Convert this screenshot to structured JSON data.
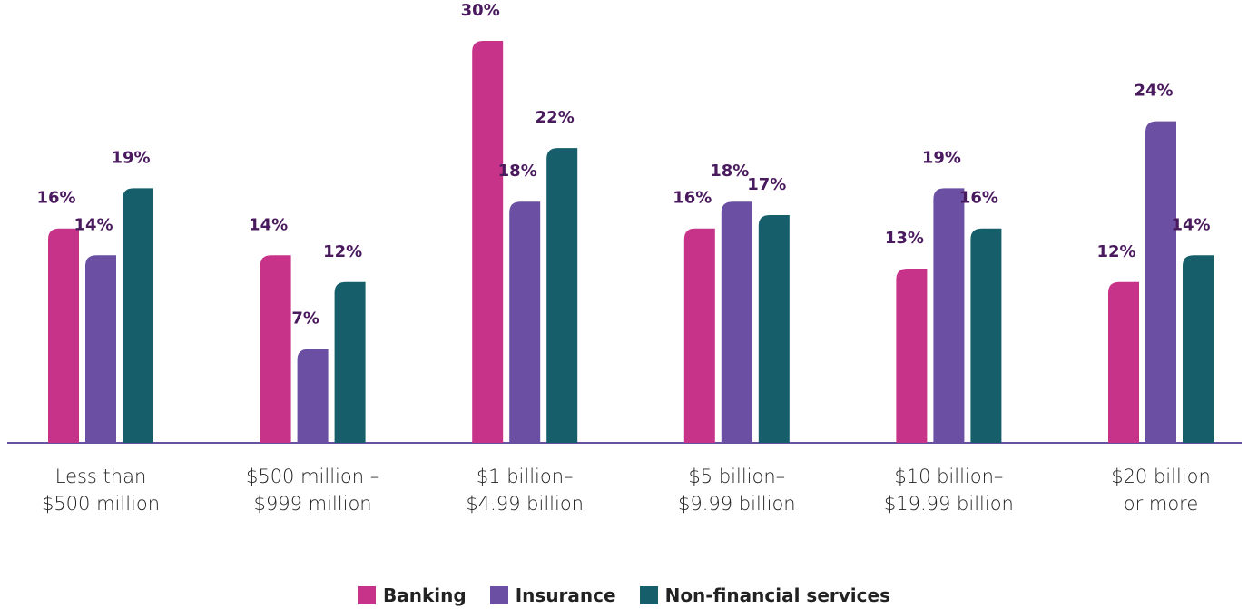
{
  "chart_data": {
    "type": "bar",
    "categories": [
      "Less than\n$500 million",
      "$500 million –\n$999 million",
      "$1 billion–\n$4.99 billion",
      "$5 billion–\n$9.99 billion",
      "$10 billion–\n$19.99 billion",
      "$20 billion\nor more"
    ],
    "series": [
      {
        "name": "Banking",
        "color": "#c8338a",
        "values": [
          16,
          14,
          30,
          16,
          13,
          12
        ],
        "value_labels": [
          "16%",
          "14%",
          "30%",
          "16%",
          "13%",
          "12%"
        ]
      },
      {
        "name": "Insurance",
        "color": "#6a4fa3",
        "values": [
          14,
          7,
          18,
          18,
          19,
          24
        ],
        "value_labels": [
          "14%",
          "7%",
          "18%",
          "18%",
          "19%",
          "24%"
        ]
      },
      {
        "name": "Non-financial services",
        "color": "#155e6a",
        "values": [
          19,
          12,
          22,
          17,
          16,
          14
        ],
        "value_labels": [
          "19%",
          "12%",
          "22%",
          "17%",
          "16%",
          "14%"
        ]
      }
    ],
    "ylim": [
      0,
      30
    ]
  }
}
